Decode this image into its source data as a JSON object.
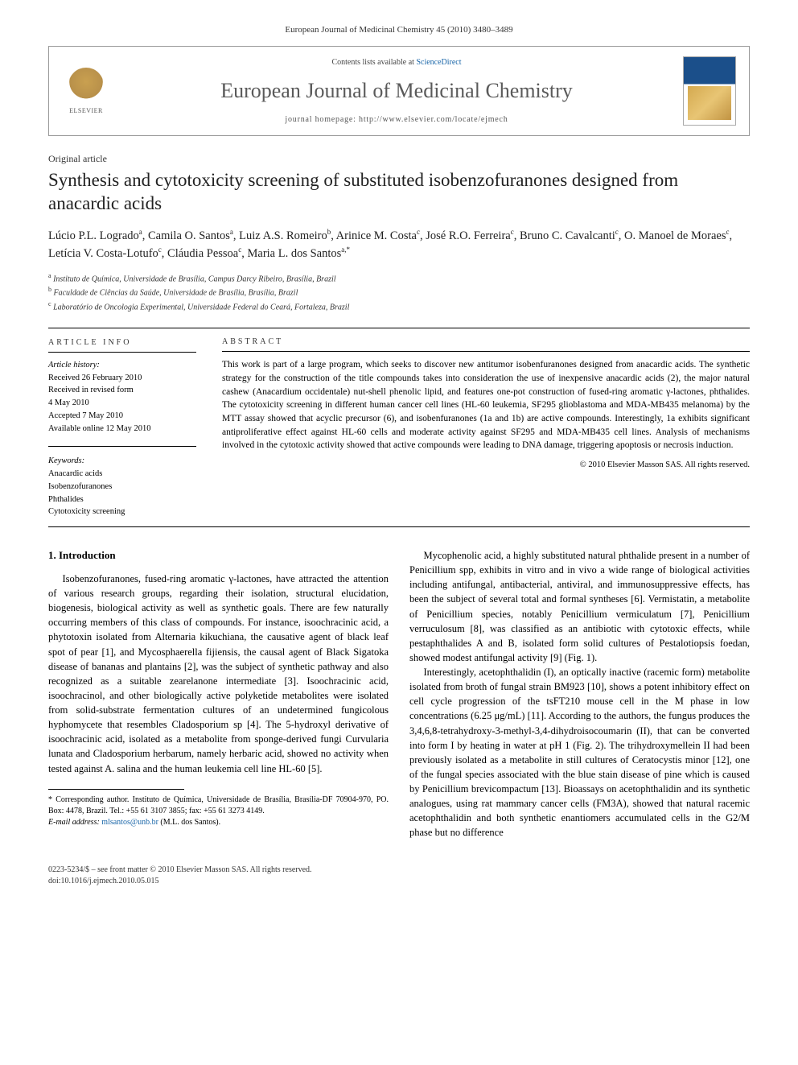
{
  "running_head": "European Journal of Medicinal Chemistry 45 (2010) 3480–3489",
  "journal_box": {
    "contents_prefix": "Contents lists available at ",
    "contents_link": "ScienceDirect",
    "journal_title": "European Journal of Medicinal Chemistry",
    "homepage_prefix": "journal homepage: ",
    "homepage_url": "http://www.elsevier.com/locate/ejmech",
    "publisher_label": "ELSEVIER"
  },
  "article": {
    "type": "Original article",
    "title": "Synthesis and cytotoxicity screening of substituted isobenzofuranones designed from anacardic acids",
    "authors_html": "Lúcio P.L. Logrado<sup>a</sup>, Camila O. Santos<sup>a</sup>, Luiz A.S. Romeiro<sup>b</sup>, Arinice M. Costa<sup>c</sup>, José R.O. Ferreira<sup>c</sup>, Bruno C. Cavalcanti<sup>c</sup>, O. Manoel de Moraes<sup>c</sup>, Letícia V. Costa-Lotufo<sup>c</sup>, Cláudia Pessoa<sup>c</sup>, Maria L. dos Santos<sup>a,*</sup>",
    "affiliations": [
      {
        "sup": "a",
        "text": "Instituto de Química, Universidade de Brasília, Campus Darcy Ribeiro, Brasília, Brazil"
      },
      {
        "sup": "b",
        "text": "Faculdade de Ciências da Saúde, Universidade de Brasília, Brasília, Brazil"
      },
      {
        "sup": "c",
        "text": "Laboratório de Oncologia Experimental, Universidade Federal do Ceará, Fortaleza, Brazil"
      }
    ]
  },
  "meta": {
    "info_label": "ARTICLE INFO",
    "abstract_label": "ABSTRACT",
    "history_label": "Article history:",
    "history": [
      "Received 26 February 2010",
      "Received in revised form",
      "4 May 2010",
      "Accepted 7 May 2010",
      "Available online 12 May 2010"
    ],
    "keywords_label": "Keywords:",
    "keywords": [
      "Anacardic acids",
      "Isobenzofuranones",
      "Phthalides",
      "Cytotoxicity screening"
    ]
  },
  "abstract": {
    "text": "This work is part of a large program, which seeks to discover new antitumor isobenfuranones designed from anacardic acids. The synthetic strategy for the construction of the title compounds takes into consideration the use of inexpensive anacardic acids (2), the major natural cashew (Anacardium occidentale) nut-shell phenolic lipid, and features one-pot construction of fused-ring aromatic γ-lactones, phthalides. The cytotoxicity screening in different human cancer cell lines (HL-60 leukemia, SF295 glioblastoma and MDA-MB435 melanoma) by the MTT assay showed that acyclic precursor (6), and isobenfuranones (1a and 1b) are active compounds. Interestingly, 1a exhibits significant antiproliferative effect against HL-60 cells and moderate activity against SF295 and MDA-MB435 cell lines. Analysis of mechanisms involved in the cytotoxic activity showed that active compounds were leading to DNA damage, triggering apoptosis or necrosis induction.",
    "copyright": "© 2010 Elsevier Masson SAS. All rights reserved."
  },
  "body": {
    "section_heading": "1. Introduction",
    "para1": "Isobenzofuranones, fused-ring aromatic γ-lactones, have attracted the attention of various research groups, regarding their isolation, structural elucidation, biogenesis, biological activity as well as synthetic goals. There are few naturally occurring members of this class of compounds. For instance, isoochracinic acid, a phytotoxin isolated from Alternaria kikuchiana, the causative agent of black leaf spot of pear [1], and Mycosphaerella fijiensis, the causal agent of Black Sigatoka disease of bananas and plantains [2], was the subject of synthetic pathway and also recognized as a suitable zearelanone intermediate [3]. Isoochracinic acid, isoochracinol, and other biologically active polyketide metabolites were isolated from solid-substrate fermentation cultures of an undetermined fungicolous hyphomycete that resembles Cladosporium sp [4]. The 5-hydroxyl derivative of isoochracinic acid, isolated as a metabolite from sponge-derived fungi Curvularia lunata and Cladosporium herbarum, namely herbaric acid, showed no activity when tested against A. salina and the human leukemia cell line HL-60 [5].",
    "para2": "Mycophenolic acid, a highly substituted natural phthalide present in a number of Penicillium spp, exhibits in vitro and in vivo a wide range of biological activities including antifungal, antibacterial, antiviral, and immunosuppressive effects, has been the subject of several total and formal syntheses [6]. Vermistatin, a metabolite of Penicillium species, notably Penicillium vermiculatum [7], Penicillium verruculosum [8], was classified as an antibiotic with cytotoxic effects, while pestaphthalides A and B, isolated form solid cultures of Pestalotiopsis foedan, showed modest antifungal activity [9] (Fig. 1).",
    "para3": "Interestingly, acetophthalidin (I), an optically inactive (racemic form) metabolite isolated from broth of fungal strain BM923 [10], shows a potent inhibitory effect on cell cycle progression of the tsFT210 mouse cell in the M phase in low concentrations (6.25 μg/mL) [11]. According to the authors, the fungus produces the 3,4,6,8-tetrahydroxy-3-methyl-3,4-dihydroisocoumarin (II), that can be converted into form I by heating in water at pH 1 (Fig. 2). The trihydroxymellein II had been previously isolated as a metabolite in still cultures of Ceratocystis minor [12], one of the fungal species associated with the blue stain disease of pine which is caused by Penicillium brevicompactum [13]. Bioassays on acetophthalidin and its synthetic analogues, using rat mammary cancer cells (FM3A), showed that natural racemic acetophthalidin and both synthetic enantiomers accumulated cells in the G2/M phase but no difference"
  },
  "footnote": {
    "corr_label": "* Corresponding author. Instituto de Química, Universidade de Brasília, Brasília-DF 70904-970, PO. Box: 4478, Brazil. Tel.: +55 61 3107 3855; fax: +55 61 3273 4149.",
    "email_label": "E-mail address: ",
    "email": "mlsantos@unb.br",
    "email_suffix": " (M.L. dos Santos)."
  },
  "footer": {
    "left_line1": "0223-5234/$ – see front matter © 2010 Elsevier Masson SAS. All rights reserved.",
    "left_line2": "doi:10.1016/j.ejmech.2010.05.015",
    "right": ""
  },
  "colors": {
    "link": "#1865a8",
    "journal_title": "#5a5a5a",
    "border": "#999999"
  }
}
